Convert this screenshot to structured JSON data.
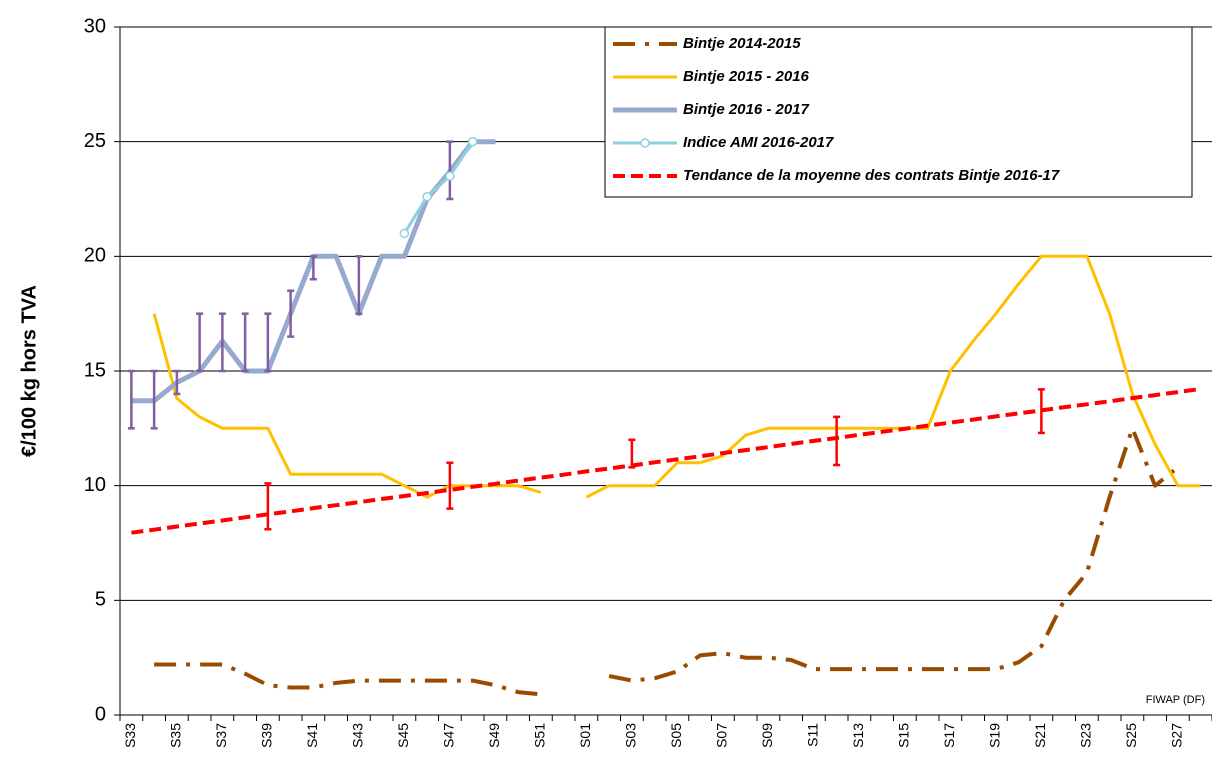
{
  "chart_data": {
    "type": "line",
    "y_label": "€/100 kg hors TVA",
    "annotation": "FIWAP (DF)",
    "categories": [
      "S33",
      null,
      "S35",
      null,
      "S37",
      null,
      "S39",
      null,
      "S41",
      null,
      "S43",
      null,
      "S45",
      null,
      "S47",
      null,
      "S49",
      null,
      "S51",
      null,
      "S01",
      null,
      "S03",
      null,
      "S05",
      null,
      "S07",
      null,
      "S09",
      null,
      "S11",
      null,
      "S13",
      null,
      "S15",
      null,
      "S17",
      null,
      "S19",
      null,
      "S21",
      null,
      "S23",
      null,
      "S25",
      null,
      "S27",
      null
    ],
    "ylim": [
      0,
      30
    ],
    "yticks": [
      0,
      5,
      10,
      15,
      20,
      25,
      30
    ],
    "grid": true,
    "legend": "top-right",
    "series": [
      {
        "name": "Bintje 2014-2015",
        "color": "#994c00",
        "width": 4,
        "dash": "22 10 4 10",
        "values": [
          null,
          2.2,
          2.2,
          2.2,
          2.2,
          1.8,
          1.3,
          1.2,
          1.2,
          1.4,
          1.5,
          1.5,
          1.5,
          1.5,
          1.5,
          1.5,
          1.3,
          1.0,
          0.9,
          null,
          null,
          1.7,
          1.5,
          1.6,
          1.9,
          2.6,
          2.7,
          2.5,
          2.5,
          2.4,
          2.0,
          2.0,
          2.0,
          2.0,
          2.0,
          2.0,
          2.0,
          2.0,
          2.0,
          2.3,
          3.0,
          5.0,
          6.2,
          9.5,
          12.5,
          10.0,
          10.8,
          null
        ]
      },
      {
        "name": "Bintje 2015 - 2016",
        "color": "#ffc000",
        "width": 3,
        "values": [
          null,
          17.5,
          13.8,
          13.0,
          12.5,
          12.5,
          12.5,
          10.5,
          10.5,
          10.5,
          10.5,
          10.5,
          10.0,
          9.5,
          10.0,
          10.0,
          10.0,
          10.0,
          9.7,
          null,
          9.5,
          10.0,
          10.0,
          10.0,
          11.0,
          11.0,
          11.3,
          12.2,
          12.5,
          12.5,
          12.5,
          12.5,
          12.5,
          12.5,
          12.5,
          12.5,
          15.0,
          16.3,
          17.5,
          18.8,
          20.0,
          20.0,
          20.0,
          17.5,
          14.0,
          11.8,
          10.0,
          10.0
        ]
      },
      {
        "name": "Bintje 2016 - 2017",
        "color": "#98a9cf",
        "width": 5,
        "values": [
          13.7,
          13.7,
          14.5,
          15.0,
          16.3,
          15.0,
          15.0,
          17.5,
          20.0,
          20.0,
          17.5,
          20.0,
          20.0,
          22.5,
          23.7,
          25.0,
          25.0,
          null,
          null,
          null,
          null,
          null,
          null,
          null,
          null,
          null,
          null,
          null,
          null,
          null,
          null,
          null,
          null,
          null,
          null,
          null,
          null,
          null,
          null,
          null,
          null,
          null,
          null,
          null,
          null,
          null,
          null,
          null
        ],
        "range_color": "#7f5fa0",
        "range_low": [
          12.5,
          12.5,
          14.0,
          15.0,
          15.0,
          15.0,
          15.0,
          16.5,
          19.0,
          null,
          17.5,
          null,
          null,
          null,
          22.5,
          null,
          null,
          null,
          null,
          null,
          null,
          null,
          null,
          null,
          null,
          null,
          null,
          null,
          null,
          null,
          null,
          null,
          null,
          null,
          null,
          null,
          null,
          null,
          null,
          null,
          null,
          null,
          null,
          null,
          null,
          null,
          null,
          null
        ],
        "range_high": [
          15.0,
          15.0,
          15.0,
          17.5,
          17.5,
          17.5,
          17.5,
          18.5,
          20.0,
          null,
          20.0,
          null,
          null,
          null,
          25.0,
          null,
          null,
          null,
          null,
          null,
          null,
          null,
          null,
          null,
          null,
          null,
          null,
          null,
          null,
          null,
          null,
          null,
          null,
          null,
          null,
          null,
          null,
          null,
          null,
          null,
          null,
          null,
          null,
          null,
          null,
          null,
          null,
          null
        ]
      },
      {
        "name": "Indice AMI 2016-2017",
        "color": "#8ecfe0",
        "width": 3,
        "marker": "circle",
        "values": [
          null,
          null,
          null,
          null,
          null,
          null,
          null,
          null,
          null,
          null,
          null,
          null,
          21.0,
          22.6,
          23.5,
          25.0,
          null,
          null,
          null,
          null,
          null,
          null,
          null,
          null,
          null,
          null,
          null,
          null,
          null,
          null,
          null,
          null,
          null,
          null,
          null,
          null,
          null,
          null,
          null,
          null,
          null,
          null,
          null,
          null,
          null,
          null,
          null,
          null
        ]
      },
      {
        "name": "Tendance de la moyenne des contrats Bintje 2016-17",
        "color": "#ff0000",
        "width": 4,
        "dash": "12 6",
        "values": [
          7.95,
          8.08,
          8.22,
          8.35,
          8.48,
          8.62,
          8.75,
          8.88,
          9.02,
          9.15,
          9.28,
          9.42,
          9.55,
          9.68,
          9.82,
          9.95,
          10.08,
          10.22,
          10.35,
          10.48,
          10.62,
          10.75,
          10.88,
          11.02,
          11.15,
          11.28,
          11.42,
          11.55,
          11.68,
          11.82,
          11.95,
          12.08,
          12.22,
          12.35,
          12.48,
          12.62,
          12.75,
          12.88,
          13.02,
          13.15,
          13.28,
          13.42,
          13.55,
          13.68,
          13.82,
          13.95,
          14.08,
          14.22
        ],
        "range_color": "#ff0000",
        "range_low": [
          null,
          null,
          null,
          null,
          null,
          null,
          8.1,
          null,
          null,
          null,
          null,
          null,
          null,
          null,
          9.0,
          null,
          null,
          null,
          null,
          null,
          null,
          null,
          10.8,
          null,
          null,
          null,
          null,
          null,
          null,
          null,
          null,
          10.9,
          null,
          null,
          null,
          null,
          null,
          null,
          null,
          null,
          12.3,
          null,
          null,
          null,
          null,
          null,
          null,
          null
        ],
        "range_high": [
          null,
          null,
          null,
          null,
          null,
          null,
          10.1,
          null,
          null,
          null,
          null,
          null,
          null,
          null,
          11.0,
          null,
          null,
          null,
          null,
          null,
          null,
          null,
          12.0,
          null,
          null,
          null,
          null,
          null,
          null,
          null,
          null,
          13.0,
          null,
          null,
          null,
          null,
          null,
          null,
          null,
          null,
          14.2,
          null,
          null,
          null,
          null,
          null,
          null,
          null
        ]
      }
    ]
  }
}
